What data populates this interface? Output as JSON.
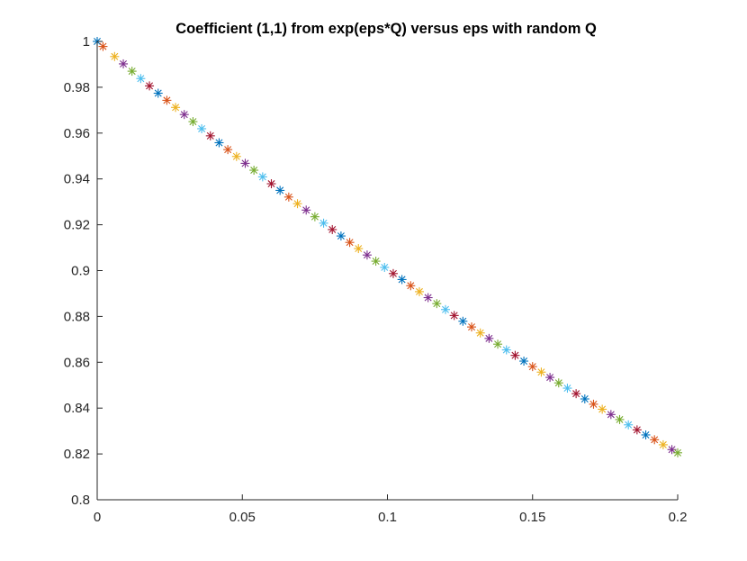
{
  "chart_data": {
    "type": "scatter",
    "title": "Coefficient (1,1) from exp(eps*Q) versus eps with random Q",
    "xlabel": "",
    "ylabel": "",
    "xlim": [
      0,
      0.2
    ],
    "ylim": [
      0.8,
      1.0
    ],
    "x_ticks": [
      "0",
      "0.05",
      "0.1",
      "0.15",
      "0.2"
    ],
    "y_ticks": [
      "0.8",
      "0.82",
      "0.84",
      "0.86",
      "0.88",
      "0.9",
      "0.92",
      "0.94",
      "0.96",
      "0.98",
      "1"
    ],
    "grid": false,
    "legend": "none",
    "marker": "asterisk",
    "marker_colors": [
      "#0072BD",
      "#D95319",
      "#EDB120",
      "#7E2F8E",
      "#77AC30",
      "#4DBEEE",
      "#A2142F"
    ],
    "x": [
      0,
      0.002,
      0.006,
      0.009,
      0.012,
      0.015,
      0.018,
      0.021,
      0.024,
      0.027,
      0.03,
      0.033,
      0.036,
      0.039,
      0.042,
      0.045,
      0.048,
      0.051,
      0.054,
      0.057,
      0.06,
      0.063,
      0.066,
      0.069,
      0.072,
      0.075,
      0.078,
      0.081,
      0.084,
      0.087,
      0.09,
      0.093,
      0.096,
      0.099,
      0.102,
      0.105,
      0.108,
      0.111,
      0.114,
      0.117,
      0.12,
      0.123,
      0.126,
      0.129,
      0.132,
      0.135,
      0.138,
      0.141,
      0.144,
      0.147,
      0.15,
      0.153,
      0.156,
      0.159,
      0.162,
      0.165,
      0.168,
      0.171,
      0.174,
      0.177,
      0.18,
      0.183,
      0.186,
      0.189,
      0.192,
      0.195,
      0.198,
      0.2
    ],
    "y": [
      1.0,
      0.9978,
      0.9934,
      0.9902,
      0.987,
      0.9838,
      0.9806,
      0.9774,
      0.9743,
      0.9712,
      0.9681,
      0.965,
      0.9619,
      0.9588,
      0.9558,
      0.9528,
      0.9498,
      0.9468,
      0.9438,
      0.9409,
      0.9379,
      0.935,
      0.9321,
      0.9292,
      0.9264,
      0.9235,
      0.9207,
      0.9179,
      0.9151,
      0.9123,
      0.9096,
      0.9068,
      0.9041,
      0.9014,
      0.8987,
      0.8961,
      0.8934,
      0.8908,
      0.8882,
      0.8856,
      0.883,
      0.8804,
      0.8779,
      0.8754,
      0.8728,
      0.8704,
      0.8679,
      0.8654,
      0.863,
      0.8605,
      0.8581,
      0.8557,
      0.8534,
      0.851,
      0.8487,
      0.8463,
      0.844,
      0.8417,
      0.8395,
      0.8372,
      0.835,
      0.8327,
      0.8305,
      0.8283,
      0.8262,
      0.824,
      0.8219,
      0.8205
    ]
  }
}
